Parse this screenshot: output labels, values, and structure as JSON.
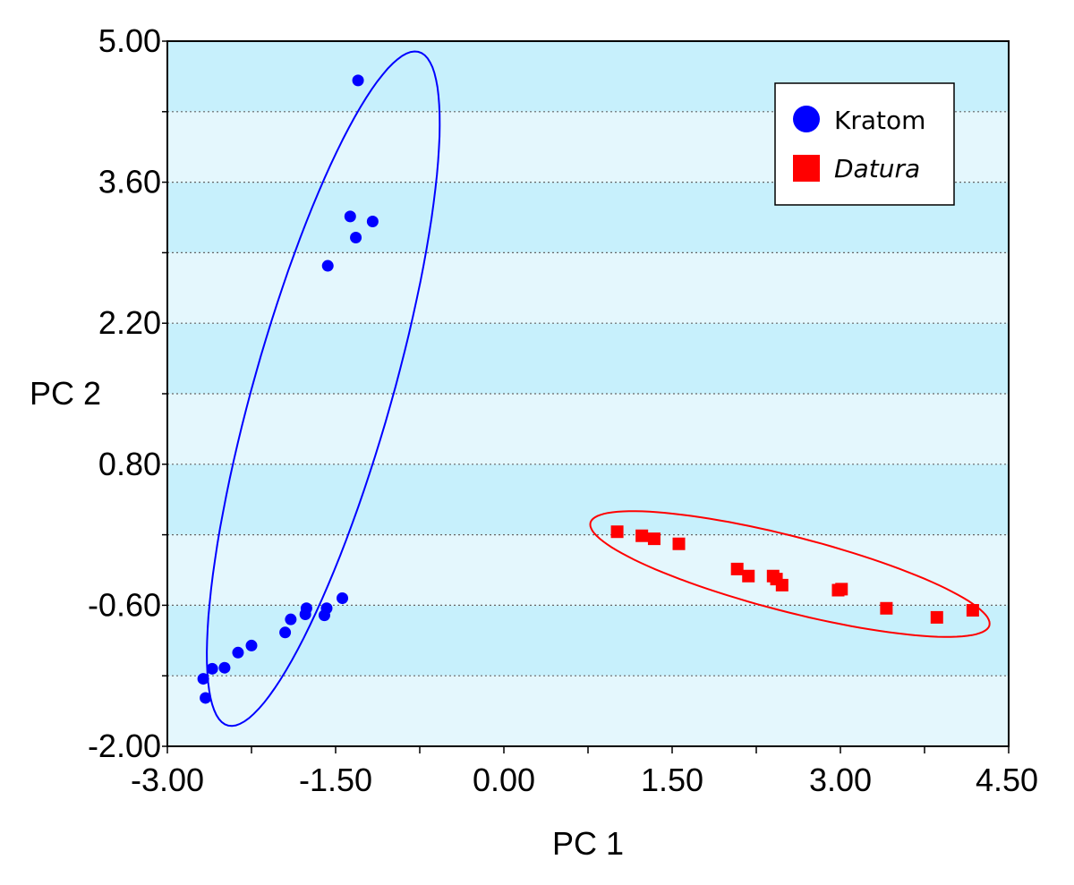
{
  "chart_data": {
    "type": "scatter",
    "xlabel": "PC 1",
    "ylabel": "PC 2",
    "xlim": [
      -3.0,
      4.5
    ],
    "ylim": [
      -2.0,
      5.0
    ],
    "x_ticks": [
      "-3.00",
      "-1.50",
      "0.00",
      "1.50",
      "3.00",
      "4.50"
    ],
    "y_ticks": [
      "5.00",
      "3.60",
      "2.20",
      "0.80",
      "-0.60",
      "-2.00"
    ],
    "grid": "horizontal dotted, alternating light-blue bands",
    "legend_position": "top-right",
    "series": [
      {
        "name": "Kratom",
        "marker": "circle",
        "color": "#0000ff",
        "points": [
          {
            "x": -1.3,
            "y": 4.61
          },
          {
            "x": -1.37,
            "y": 3.26
          },
          {
            "x": -1.17,
            "y": 3.21
          },
          {
            "x": -1.32,
            "y": 3.05
          },
          {
            "x": -1.57,
            "y": 2.77
          },
          {
            "x": -1.44,
            "y": -0.53
          },
          {
            "x": -1.58,
            "y": -0.63
          },
          {
            "x": -1.6,
            "y": -0.7
          },
          {
            "x": -1.76,
            "y": -0.63
          },
          {
            "x": -1.77,
            "y": -0.69
          },
          {
            "x": -1.9,
            "y": -0.74
          },
          {
            "x": -1.95,
            "y": -0.87
          },
          {
            "x": -2.25,
            "y": -1.0
          },
          {
            "x": -2.37,
            "y": -1.07
          },
          {
            "x": -2.49,
            "y": -1.22
          },
          {
            "x": -2.6,
            "y": -1.23
          },
          {
            "x": -2.68,
            "y": -1.33
          },
          {
            "x": -2.66,
            "y": -1.52
          }
        ],
        "ellipse": {
          "cx": -1.61,
          "cy": 1.55,
          "rx": 3.45,
          "ry": 0.62,
          "rotation_deg": 75.8
        }
      },
      {
        "name": "Datura",
        "marker": "square",
        "color": "#ff0000",
        "points": [
          {
            "x": 1.01,
            "y": 0.13
          },
          {
            "x": 1.23,
            "y": 0.09
          },
          {
            "x": 1.34,
            "y": 0.06
          },
          {
            "x": 1.56,
            "y": 0.01
          },
          {
            "x": 2.08,
            "y": -0.24
          },
          {
            "x": 2.18,
            "y": -0.31
          },
          {
            "x": 2.4,
            "y": -0.31
          },
          {
            "x": 2.43,
            "y": -0.34
          },
          {
            "x": 2.48,
            "y": -0.4
          },
          {
            "x": 2.98,
            "y": -0.45
          },
          {
            "x": 3.01,
            "y": -0.44
          },
          {
            "x": 3.41,
            "y": -0.63
          },
          {
            "x": 3.86,
            "y": -0.72
          },
          {
            "x": 4.18,
            "y": -0.65
          }
        ],
        "ellipse": {
          "cx": 2.55,
          "cy": -0.29,
          "rx": 1.85,
          "ry": 0.37,
          "rotation_deg": -16.1
        }
      }
    ]
  },
  "legend": {
    "items": [
      {
        "label": "Kratom",
        "italic": false
      },
      {
        "label": "Datura",
        "italic": true
      }
    ]
  },
  "colors": {
    "plot_band_dark": "#c7f0fc",
    "plot_band_light": "#e4f7fd",
    "kratom": "#0000ff",
    "datura": "#ff0000"
  }
}
